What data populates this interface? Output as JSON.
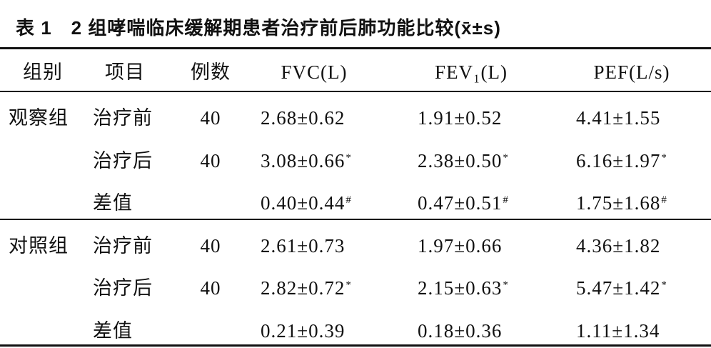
{
  "title": "表 1　2 组哮喘临床缓解期患者治疗前后肺功能比较(x̄±s)",
  "table": {
    "header": [
      "组别",
      "项目",
      "例数",
      "FVC(L)",
      "FEV₁(L)",
      "PEF(L/s)"
    ],
    "groups": [
      {
        "name": "观察组",
        "rows": [
          {
            "item": "治疗前",
            "n": "40",
            "fvc": {
              "text": "2.68±0.62"
            },
            "fev1": {
              "text": "1.91±0.52"
            },
            "pef": {
              "text": "4.41±1.55"
            }
          },
          {
            "item": "治疗后",
            "n": "40",
            "fvc": {
              "text": "3.08±0.66",
              "sup": "*"
            },
            "fev1": {
              "text": "2.38±0.50",
              "sup": "*"
            },
            "pef": {
              "text": "6.16±1.97",
              "sup": "*"
            }
          },
          {
            "item": "差值",
            "fvc": {
              "text": "0.40±0.44",
              "sup": "#"
            },
            "fev1": {
              "text": "0.47±0.51",
              "sup": "#"
            },
            "pef": {
              "text": "1.75±1.68",
              "sup": "#"
            }
          }
        ]
      },
      {
        "name": "对照组",
        "rows": [
          {
            "item": "治疗前",
            "n": "40",
            "fvc": {
              "text": "2.61±0.73"
            },
            "fev1": {
              "text": "1.97±0.66"
            },
            "pef": {
              "text": "4.36±1.82"
            }
          },
          {
            "item": "治疗后",
            "n": "40",
            "fvc": {
              "text": "2.82±0.72",
              "sup": "*"
            },
            "fev1": {
              "text": "2.15±0.63",
              "sup": "*"
            },
            "pef": {
              "text": "5.47±1.42",
              "sup": "*"
            }
          },
          {
            "item": "差值",
            "fvc": {
              "text": "0.21±0.39"
            },
            "fev1": {
              "text": "0.18±0.36"
            },
            "pef": {
              "text": "1.11±1.34"
            }
          }
        ]
      }
    ]
  }
}
